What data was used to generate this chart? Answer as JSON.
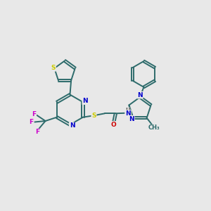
{
  "background_color": "#e8e8e8",
  "bond_color": "#2d6b6b",
  "atom_colors": {
    "S": "#cccc00",
    "N": "#0000cc",
    "O": "#cc0000",
    "F": "#cc00cc",
    "C": "#2d6b6b",
    "H": "#555555"
  },
  "figsize": [
    3.0,
    3.0
  ],
  "dpi": 100
}
